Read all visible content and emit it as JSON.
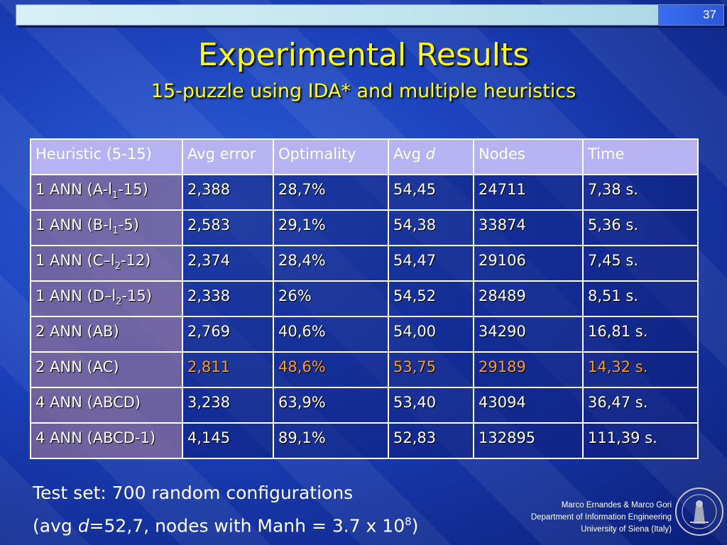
{
  "slide": {
    "page_number": "37",
    "title": "Experimental Results",
    "subtitle": "15-puzzle using IDA* and multiple heuristics"
  },
  "table": {
    "headers": [
      "Heuristic (5-15)",
      "Avg error",
      "Optimality",
      "Avg ",
      "Nodes",
      "Time"
    ],
    "header_italic_suffix": "d",
    "rows": [
      {
        "h_pre": "1 ANN (A-l",
        "h_sub": "1",
        "h_post": "-15)",
        "avg_error": "2,388",
        "optimality": "28,7%",
        "avg_d": "54,45",
        "nodes": "24711",
        "time": "7,38 s."
      },
      {
        "h_pre": "1 ANN (B-l",
        "h_sub": "1",
        "h_post": "-5)",
        "avg_error": "2,583",
        "optimality": "29,1%",
        "avg_d": "54,38",
        "nodes": "33874",
        "time": "5,36 s."
      },
      {
        "h_pre": "1 ANN (C–l",
        "h_sub": "2",
        "h_post": "-12)",
        "avg_error": "2,374",
        "optimality": "28,4%",
        "avg_d": "54,47",
        "nodes": "29106",
        "time": "7,45 s."
      },
      {
        "h_pre": "1 ANN (D–l",
        "h_sub": "2",
        "h_post": "-15)",
        "avg_error": "2,338",
        "optimality": "26%",
        "avg_d": "54,52",
        "nodes": "28489",
        "time": "8,51 s."
      },
      {
        "h_pre": "2 ANN (AB)",
        "h_sub": "",
        "h_post": "",
        "avg_error": "2,769",
        "optimality": "40,6%",
        "avg_d": "54,00",
        "nodes": "34290",
        "time": "16,81 s."
      },
      {
        "h_pre": "2 ANN (AC)",
        "h_sub": "",
        "h_post": "",
        "avg_error": "2,811",
        "optimality": "48,6%",
        "avg_d": "53,75",
        "nodes": "29189",
        "time": "14,32 s.",
        "highlight": true
      },
      {
        "h_pre": "4 ANN (ABCD)",
        "h_sub": "",
        "h_post": "",
        "avg_error": "3,238",
        "optimality": "63,9%",
        "avg_d": "53,40",
        "nodes": "43094",
        "time": "36,47 s."
      },
      {
        "h_pre": "4 ANN (ABCD-1)",
        "h_sub": "",
        "h_post": "",
        "avg_error": "4,145",
        "optimality": "89,1%",
        "avg_d": "52,83",
        "nodes": "132895",
        "time": "111,39 s."
      }
    ]
  },
  "footer": {
    "line1": "Test set: 700 random configurations",
    "line2_a": "(avg ",
    "line2_d": "d",
    "line2_b": "=52,7, nodes with Manh = 3.7 x 10",
    "line2_exp": "8",
    "line2_c": ")"
  },
  "credits": {
    "authors": "Marco Ernandes & Marco Gori",
    "department": "Department of Information Engineering",
    "university": "University of Siena (Italy)"
  },
  "colors": {
    "title": "#ffff00",
    "highlight": "#ff9a1a",
    "header_bg": "#b7b2f2"
  },
  "seal_icon": "university-seal-icon"
}
